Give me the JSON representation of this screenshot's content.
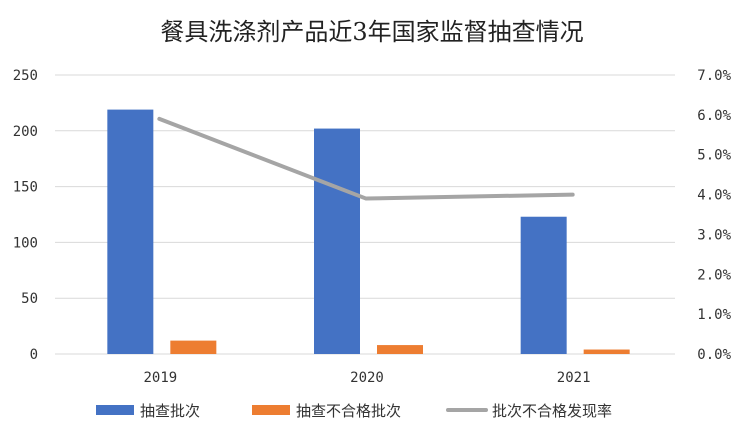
{
  "chart_data": {
    "type": "bar",
    "title": "餐具洗涤剂产品近3年国家监督抽查情况",
    "categories": [
      "2019",
      "2020",
      "2021"
    ],
    "series": [
      {
        "name": "抽查批次",
        "kind": "bar",
        "axis": "left",
        "values": [
          219,
          202,
          123
        ],
        "color": "#4472C4"
      },
      {
        "name": "抽查不合格批次",
        "kind": "bar",
        "axis": "left",
        "values": [
          12,
          8,
          4
        ],
        "color": "#ED7D31"
      },
      {
        "name": "批次不合格发现率",
        "kind": "line",
        "axis": "right",
        "values": [
          0.059,
          0.039,
          0.04
        ],
        "color": "#A5A5A5"
      }
    ],
    "y_left": {
      "min": 0,
      "max": 250,
      "ticks": [
        "0",
        "50",
        "100",
        "150",
        "200",
        "250"
      ]
    },
    "y_right": {
      "min": 0,
      "max": 0.07,
      "ticks": [
        "0.0%",
        "1.0%",
        "2.0%",
        "3.0%",
        "4.0%",
        "5.0%",
        "6.0%",
        "7.0%"
      ]
    },
    "grid": true,
    "legend_position": "bottom"
  }
}
